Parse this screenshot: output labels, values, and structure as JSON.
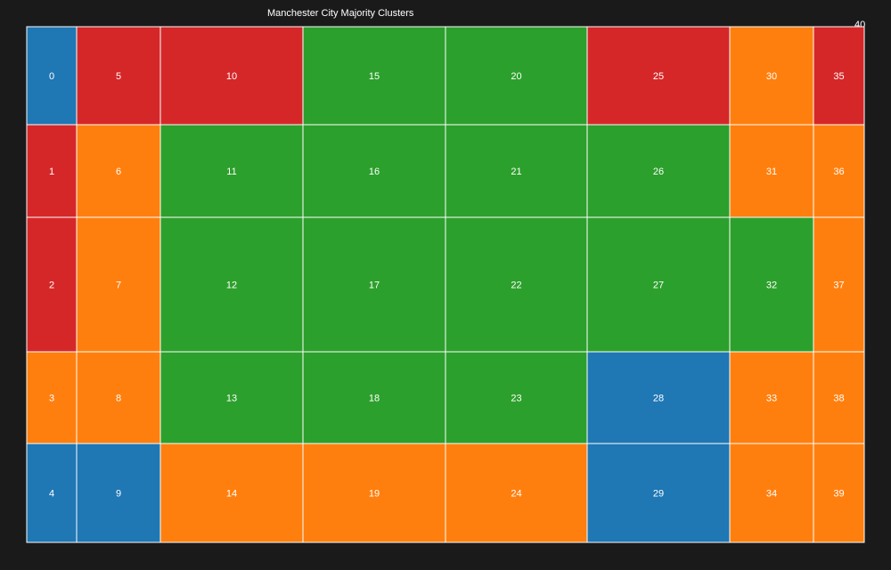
{
  "chart_data": {
    "type": "heatmap",
    "title": "Manchester City Majority Clusters",
    "corner_label": "40",
    "grid": {
      "columns": 8,
      "rows": 5
    },
    "column_widths": [
      56,
      94,
      160,
      160,
      159,
      160,
      94,
      57
    ],
    "row_heights": [
      110,
      104,
      151,
      103,
      111
    ],
    "colors": {
      "blue": "#1f77b4",
      "orange": "#ff7f0e",
      "green": "#2ca02c",
      "red": "#d62728",
      "background": "#1a1a1a",
      "border": "#ffffff"
    },
    "cells": [
      {
        "label": "0",
        "color": "blue"
      },
      {
        "label": "1",
        "color": "red"
      },
      {
        "label": "2",
        "color": "red"
      },
      {
        "label": "3",
        "color": "orange"
      },
      {
        "label": "4",
        "color": "blue"
      },
      {
        "label": "5",
        "color": "red"
      },
      {
        "label": "6",
        "color": "orange"
      },
      {
        "label": "7",
        "color": "orange"
      },
      {
        "label": "8",
        "color": "orange"
      },
      {
        "label": "9",
        "color": "blue"
      },
      {
        "label": "10",
        "color": "red"
      },
      {
        "label": "11",
        "color": "green"
      },
      {
        "label": "12",
        "color": "green"
      },
      {
        "label": "13",
        "color": "green"
      },
      {
        "label": "14",
        "color": "orange"
      },
      {
        "label": "15",
        "color": "green"
      },
      {
        "label": "16",
        "color": "green"
      },
      {
        "label": "17",
        "color": "green"
      },
      {
        "label": "18",
        "color": "green"
      },
      {
        "label": "19",
        "color": "orange"
      },
      {
        "label": "20",
        "color": "green"
      },
      {
        "label": "21",
        "color": "green"
      },
      {
        "label": "22",
        "color": "green"
      },
      {
        "label": "23",
        "color": "green"
      },
      {
        "label": "24",
        "color": "orange"
      },
      {
        "label": "25",
        "color": "red"
      },
      {
        "label": "26",
        "color": "green"
      },
      {
        "label": "27",
        "color": "green"
      },
      {
        "label": "28",
        "color": "blue"
      },
      {
        "label": "29",
        "color": "blue"
      },
      {
        "label": "30",
        "color": "orange"
      },
      {
        "label": "31",
        "color": "orange"
      },
      {
        "label": "32",
        "color": "green"
      },
      {
        "label": "33",
        "color": "orange"
      },
      {
        "label": "34",
        "color": "orange"
      },
      {
        "label": "35",
        "color": "red"
      },
      {
        "label": "36",
        "color": "orange"
      },
      {
        "label": "37",
        "color": "orange"
      },
      {
        "label": "38",
        "color": "orange"
      },
      {
        "label": "39",
        "color": "orange"
      }
    ]
  }
}
